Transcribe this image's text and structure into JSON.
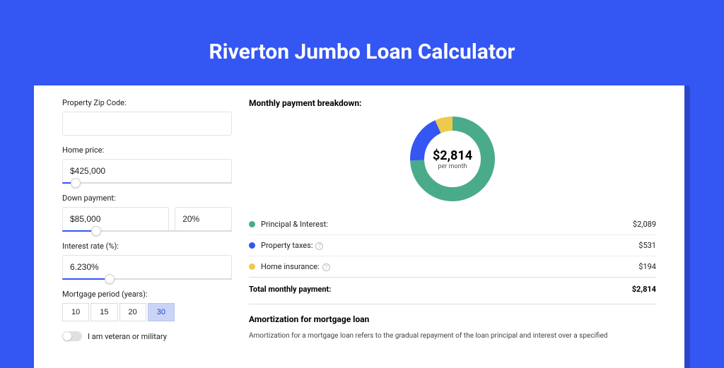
{
  "page_title": "Riverton Jumbo Loan Calculator",
  "colors": {
    "background": "#3456f3",
    "shadow": "#2b45c9",
    "card": "#ffffff",
    "accent": "#3456f3",
    "text": "#222222"
  },
  "form": {
    "zip": {
      "label": "Property Zip Code:",
      "value": ""
    },
    "home_price": {
      "label": "Home price:",
      "value": "$425,000",
      "slider_pct": 8
    },
    "down_payment": {
      "label": "Down payment:",
      "value": "$85,000",
      "pct_value": "20%",
      "slider_pct": 20
    },
    "interest_rate": {
      "label": "Interest rate (%):",
      "value": "6.230%",
      "slider_pct": 28
    },
    "period": {
      "label": "Mortgage period (years):",
      "options": [
        "10",
        "15",
        "20",
        "30"
      ],
      "selected": "30"
    },
    "veteran": {
      "label": "I am veteran or military",
      "checked": false
    }
  },
  "breakdown": {
    "title": "Monthly payment breakdown:",
    "donut": {
      "type": "donut",
      "center_value": "$2,814",
      "center_sub": "per month",
      "thickness": 20,
      "radius": 60,
      "slices": [
        {
          "id": "principal_interest",
          "label": "Principal & Interest:",
          "value": "$2,089",
          "num": 2089,
          "color": "#4aab8b",
          "info": false
        },
        {
          "id": "property_taxes",
          "label": "Property taxes:",
          "value": "$531",
          "num": 531,
          "color": "#3456f3",
          "info": true
        },
        {
          "id": "home_insurance",
          "label": "Home insurance:",
          "value": "$194",
          "num": 194,
          "color": "#edc94c",
          "info": true
        }
      ]
    },
    "total": {
      "label": "Total monthly payment:",
      "value": "$2,814"
    }
  },
  "amort": {
    "title": "Amortization for mortgage loan",
    "text": "Amortization for a mortgage loan refers to the gradual repayment of the loan principal and interest over a specified"
  }
}
